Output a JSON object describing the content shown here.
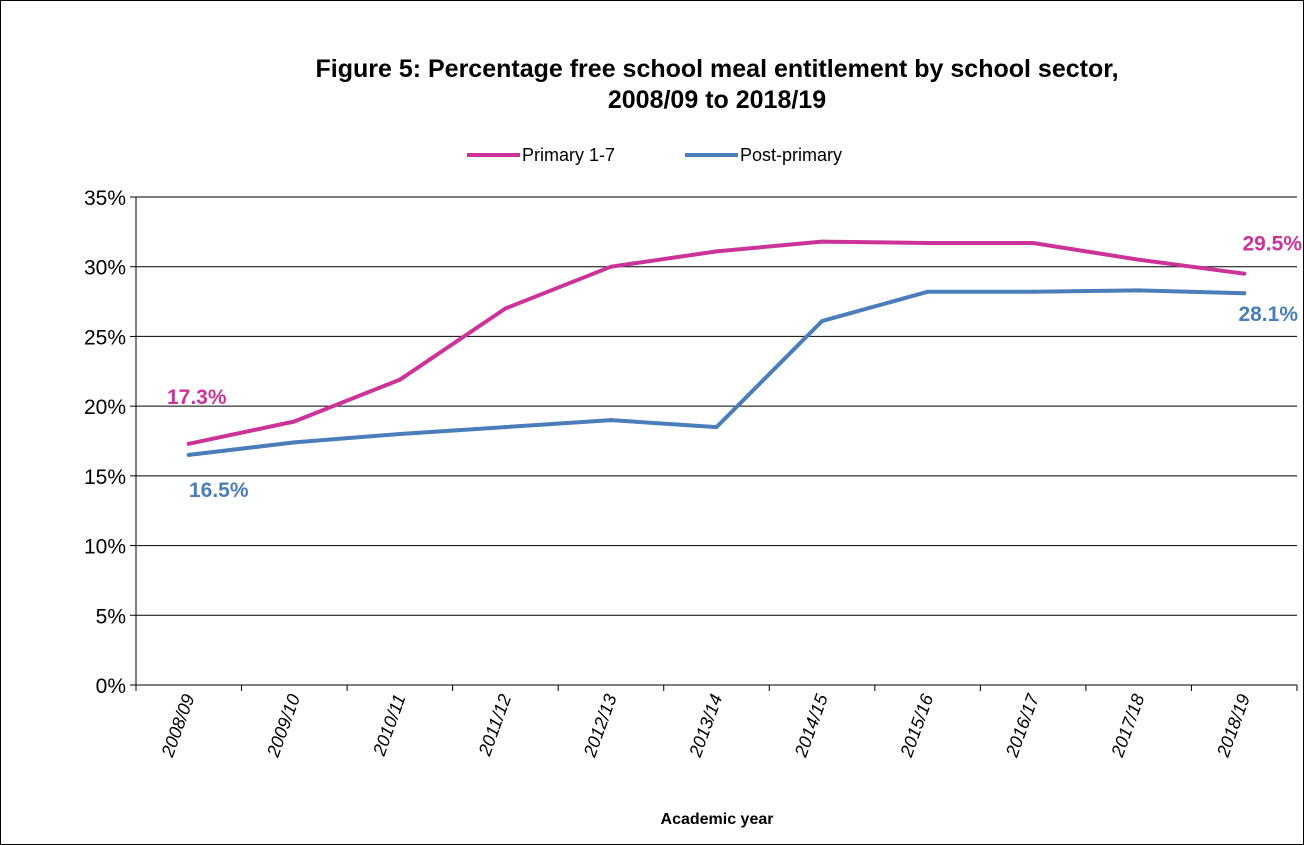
{
  "chart_data": {
    "type": "line",
    "title_line1": "Figure 5: Percentage free school meal entitlement by school sector,",
    "title_line2": "2008/09 to 2018/19",
    "xlabel": "Academic year",
    "ylabel": "",
    "categories": [
      "2008/09",
      "2009/10",
      "2010/11",
      "2011/12",
      "2012/13",
      "2013/14",
      "2014/15",
      "2015/16",
      "2016/17",
      "2017/18",
      "2018/19"
    ],
    "yticks": [
      "0%",
      "5%",
      "10%",
      "15%",
      "20%",
      "25%",
      "30%",
      "35%"
    ],
    "ylim": [
      0,
      35
    ],
    "grid": true,
    "legend_position": "top",
    "series": [
      {
        "name": "Primary 1-7",
        "color": "#CC3399",
        "values": [
          17.3,
          18.9,
          21.9,
          27.0,
          30.0,
          31.1,
          31.8,
          31.7,
          31.7,
          30.5,
          29.5
        ],
        "labels": {
          "first": "17.3%",
          "last": "29.5%"
        }
      },
      {
        "name": "Post-primary",
        "color": "#4A7EBB",
        "values": [
          16.5,
          17.4,
          18.0,
          18.5,
          19.0,
          18.5,
          26.1,
          28.2,
          28.2,
          28.3,
          28.1
        ],
        "labels": {
          "first": "16.5%",
          "last": "28.1%"
        }
      }
    ]
  }
}
